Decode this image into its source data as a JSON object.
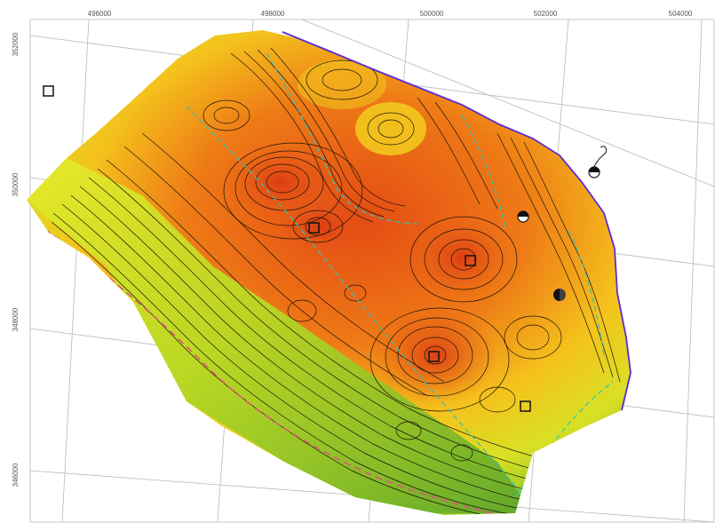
{
  "map": {
    "x_ticks": [
      "496000",
      "498000",
      "500000",
      "502000",
      "504000"
    ],
    "y_ticks": [
      "352000",
      "350000",
      "348000",
      "346000"
    ],
    "colors": {
      "boundary": "#5b2bd6",
      "low": "#a6d81e",
      "mid": "#f4d21c",
      "high": "#e44a14",
      "contour": "#1a1208",
      "aux_contour": "#27c7b8",
      "fault": "#e0567a"
    },
    "markers": [
      {
        "name": "well-square-nw"
      },
      {
        "name": "well-square-center-left"
      },
      {
        "name": "well-square-center-right"
      },
      {
        "name": "well-square-south-center"
      },
      {
        "name": "well-square-south-east"
      },
      {
        "name": "well-circle-east-1"
      },
      {
        "name": "well-circle-east-2"
      },
      {
        "name": "well-circle-east-3"
      }
    ]
  }
}
